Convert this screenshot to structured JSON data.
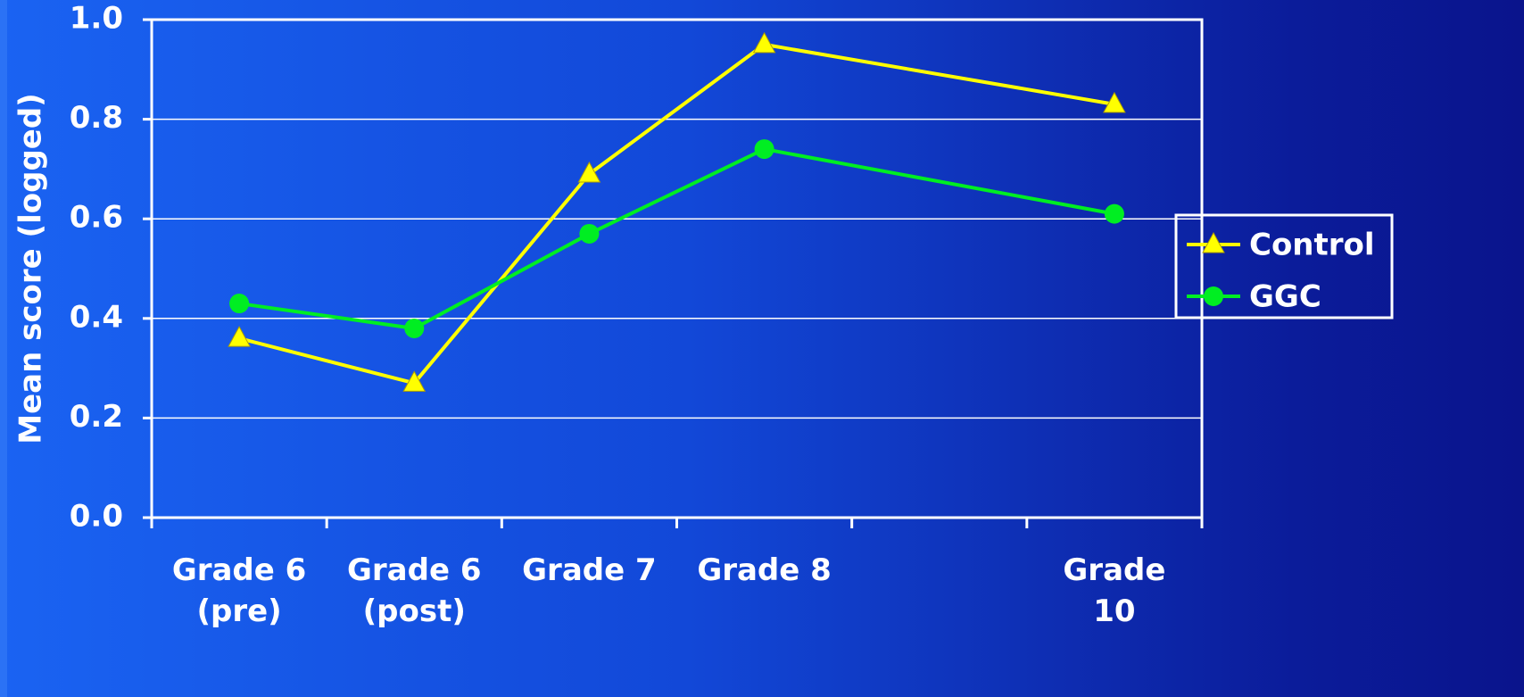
{
  "chart_data": {
    "type": "line",
    "ylabel": "Mean score (logged)",
    "categories": [
      "Grade 6\n(pre)",
      "Grade 6\n(post)",
      "Grade 7",
      "Grade 8",
      null,
      "Grade\n10"
    ],
    "series": [
      {
        "name": "Control",
        "color": "#ffff00",
        "marker": "triangle",
        "values": [
          0.36,
          0.27,
          0.69,
          0.95,
          null,
          0.83
        ]
      },
      {
        "name": "GGC",
        "color": "#00ee22",
        "marker": "circle",
        "values": [
          0.43,
          0.38,
          0.57,
          0.74,
          null,
          0.61
        ]
      }
    ],
    "ylim": [
      0,
      1
    ],
    "yticks": [
      {
        "value": 0,
        "label": "0.0"
      },
      0.2,
      0.4,
      0.6,
      0.8,
      {
        "value": 1,
        "label": "1.0"
      }
    ],
    "grid": true,
    "connect_gaps": true,
    "legend": "right"
  }
}
